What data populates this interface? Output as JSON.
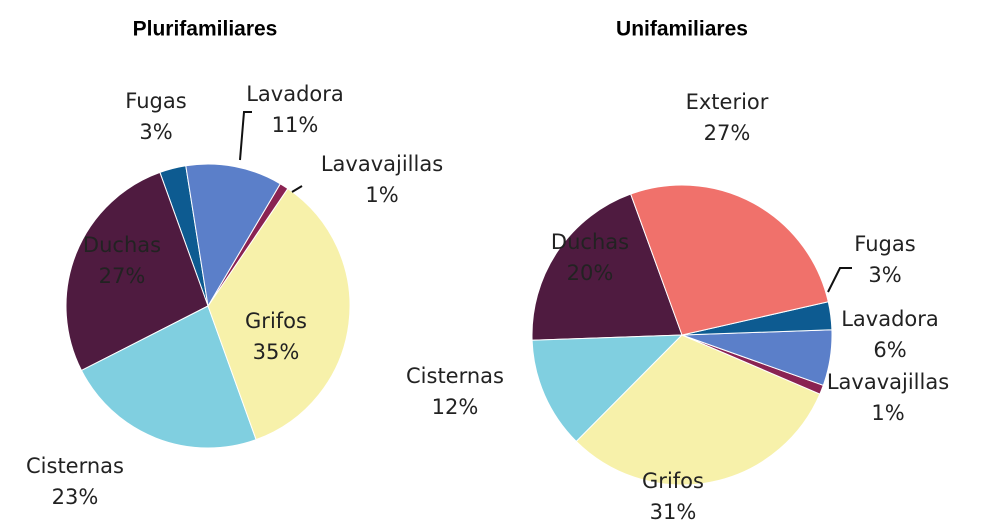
{
  "chart_data": [
    {
      "type": "pie",
      "title": "Plurifamiliares",
      "categories": [
        "Lavadora",
        "Lavavajillas",
        "Grifos",
        "Cisternas",
        "Duchas",
        "Fugas"
      ],
      "values": [
        11,
        1,
        35,
        23,
        27,
        3
      ],
      "value_labels": [
        "11%",
        "1%",
        "35%",
        "23%",
        "27%",
        "3%"
      ],
      "colors": [
        "#5b7fc9",
        "#8a2352",
        "#f7f1aa",
        "#80cfe0",
        "#4f1b40",
        "#0d5b91"
      ]
    },
    {
      "type": "pie",
      "title": "Unifamiliares",
      "categories": [
        "Exterior",
        "Fugas",
        "Lavadora",
        "Lavavajillas",
        "Grifos",
        "Cisternas",
        "Duchas"
      ],
      "values": [
        27,
        3,
        6,
        1,
        31,
        12,
        20
      ],
      "value_labels": [
        "27%",
        "3%",
        "6%",
        "1%",
        "31%",
        "12%",
        "20%"
      ],
      "colors": [
        "#f0716b",
        "#0d5b91",
        "#5b7fc9",
        "#8a2352",
        "#f7f1aa",
        "#80cfe0",
        "#4f1b40"
      ]
    }
  ]
}
